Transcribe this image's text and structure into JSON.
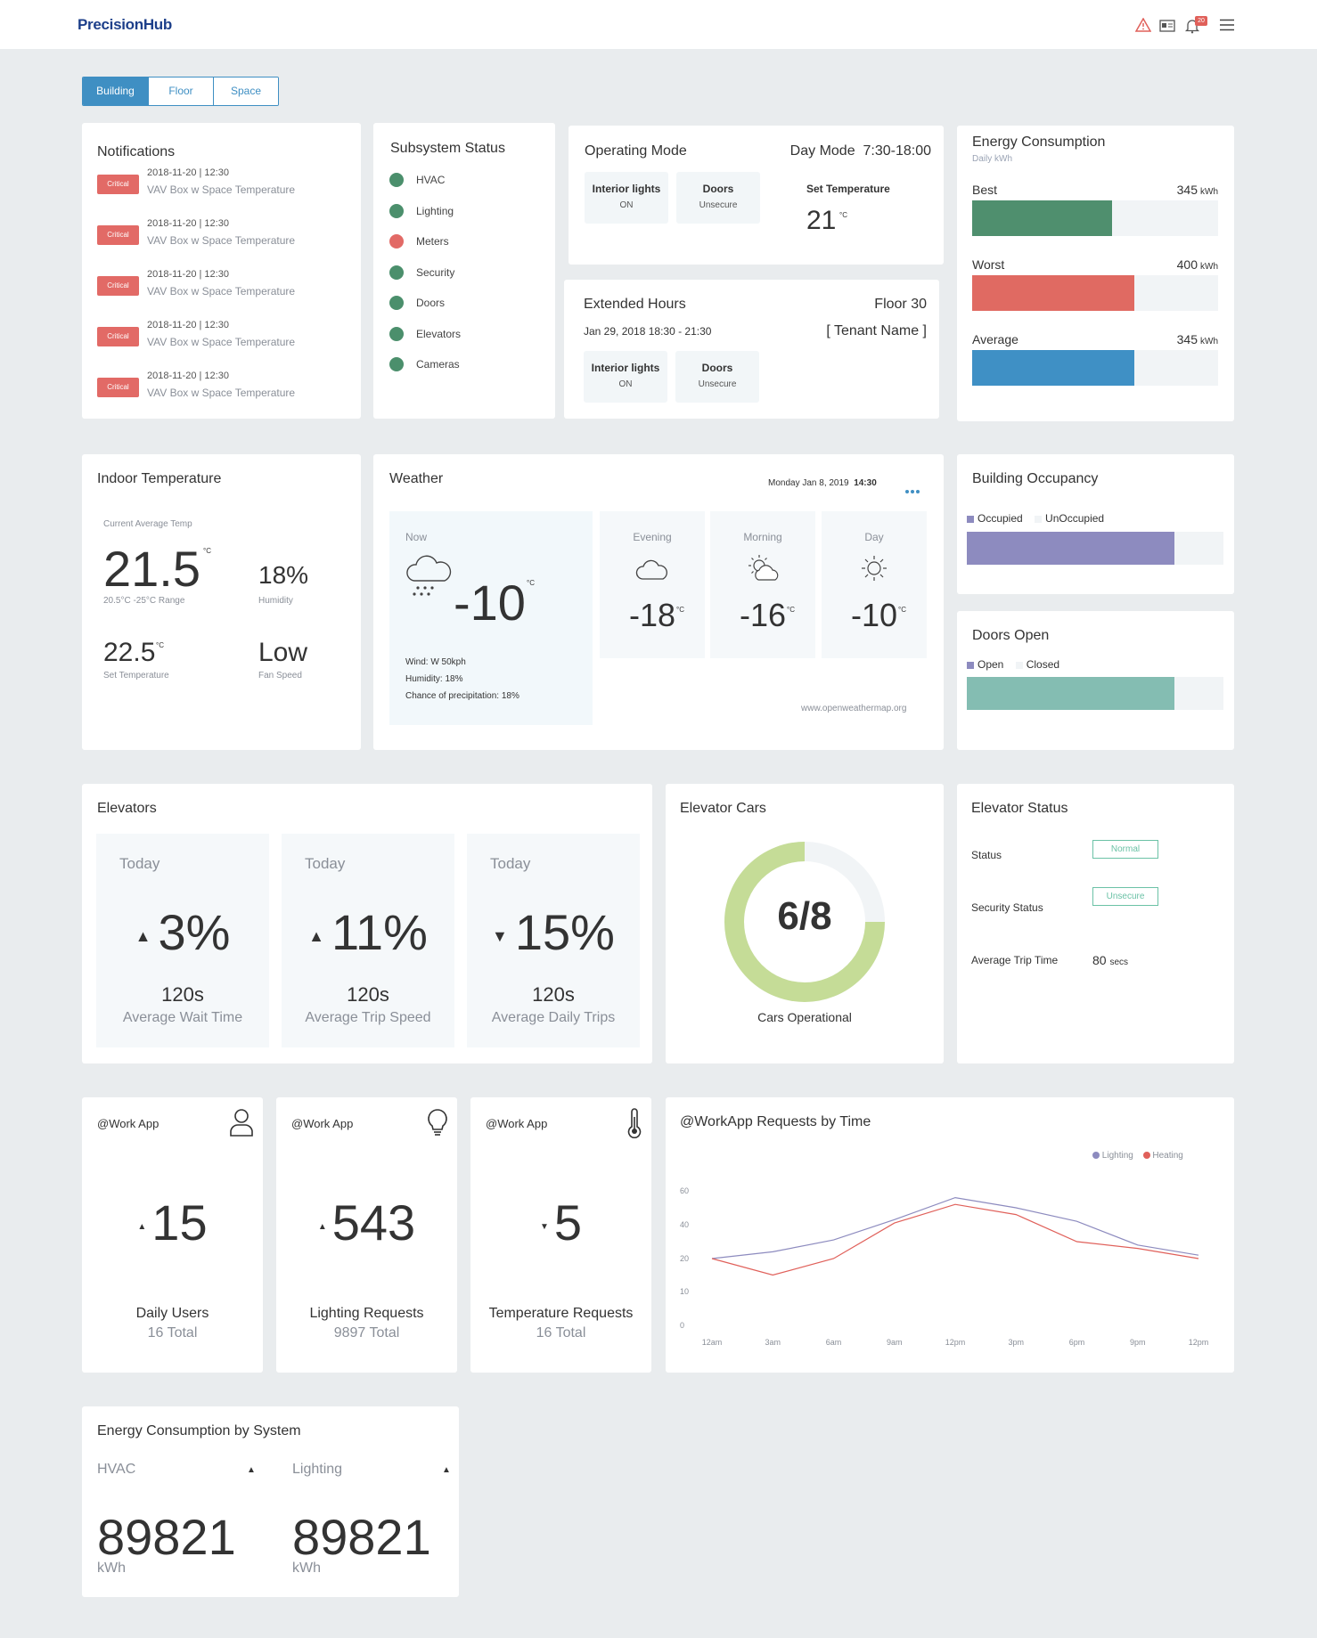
{
  "header": {
    "logo": "PrecisionHub",
    "notif_count": "20"
  },
  "tabs": [
    "Building",
    "Floor",
    "Space"
  ],
  "notifications": {
    "title": "Notifications",
    "items": [
      {
        "badge": "Critical",
        "date": "2018-11-20 |  12:30",
        "text": "VAV Box w Space Temperature"
      },
      {
        "badge": "Critical",
        "date": "2018-11-20 |  12:30",
        "text": "VAV Box w Space Temperature"
      },
      {
        "badge": "Critical",
        "date": "2018-11-20 |  12:30",
        "text": "VAV Box w Space Temperature"
      },
      {
        "badge": "Critical",
        "date": "2018-11-20 |  12:30",
        "text": "VAV Box w Space Temperature"
      },
      {
        "badge": "Critical",
        "date": "2018-11-20 |  12:30",
        "text": "VAV Box w Space Temperature"
      }
    ]
  },
  "subsystem": {
    "title": "Subsystem Status",
    "items": [
      {
        "label": "HVAC",
        "color": "#4b8f6c"
      },
      {
        "label": "Lighting",
        "color": "#4b8f6c"
      },
      {
        "label": "Meters",
        "color": "#e26a66"
      },
      {
        "label": "Security",
        "color": "#4b8f6c"
      },
      {
        "label": "Doors",
        "color": "#4b8f6c"
      },
      {
        "label": "Elevators",
        "color": "#4b8f6c"
      },
      {
        "label": "Cameras",
        "color": "#4b8f6c"
      }
    ]
  },
  "operating": {
    "title": "Operating Mode",
    "mode": "Day Mode",
    "hours": "7:30-18:00",
    "lights_label": "Interior lights",
    "lights_value": "ON",
    "doors_label": "Doors",
    "doors_value": "Unsecure",
    "set_temp_label": "Set Temperature",
    "set_temp_value": "21",
    "unit": "°C"
  },
  "extended": {
    "title": "Extended Hours",
    "floor": "Floor 30",
    "date": "Jan 29, 2018  18:30 - 21:30",
    "tenant": "[ Tenant Name ]",
    "lights_label": "Interior lights",
    "lights_value": "ON",
    "doors_label": "Doors",
    "doors_value": "Unsecure"
  },
  "energy": {
    "title": "Energy Consumption",
    "subtitle": "Daily kWh",
    "unit": "kWh",
    "rows": [
      {
        "label": "Best",
        "value": "345",
        "fill": 0.57,
        "color": "#4f8f6e"
      },
      {
        "label": "Worst",
        "value": "400",
        "fill": 0.66,
        "color": "#e06a62"
      },
      {
        "label": "Average",
        "value": "345",
        "fill": 0.66,
        "color": "#3f90c5"
      }
    ]
  },
  "indoor": {
    "title": "Indoor Temperature",
    "current_label": "Current Average Temp",
    "current": "21.5",
    "unit": "°C",
    "range": "20.5°C -25°C Range",
    "humidity": "18%",
    "humidity_label": "Humidity",
    "set": "22.5",
    "set_label": "Set Temperature",
    "fan": "Low",
    "fan_label": "Fan Speed"
  },
  "weather": {
    "title": "Weather",
    "date": "Monday Jan 8, 2019",
    "time": "14:30",
    "now_label": "Now",
    "now_temp": "-10",
    "unit": "°C",
    "wind": "Wind: W 50kph",
    "humidity": "Humidity:  18%",
    "precip": "Chance of precipitation:  18%",
    "source": "www.openweathermap.org",
    "forecast": [
      {
        "label": "Evening",
        "temp": "-18",
        "icon": "cloud-icon"
      },
      {
        "label": "Morning",
        "temp": "-16",
        "icon": "partly-sunny-icon"
      },
      {
        "label": "Day",
        "temp": "-10",
        "icon": "sun-icon"
      }
    ]
  },
  "occupancy": {
    "title": "Building Occupancy",
    "legend": [
      "Occupied",
      "UnOccupied"
    ],
    "fill": 0.81,
    "color": "#8d8bbf"
  },
  "doors": {
    "title": "Doors Open",
    "legend": [
      "Open",
      "Closed"
    ],
    "fill": 0.81,
    "color": "#84bdb2"
  },
  "elevators": {
    "title": "Elevators",
    "items": [
      {
        "today": "Today",
        "dir": "up",
        "pct": "3%",
        "value": "120s",
        "caption": "Average Wait Time"
      },
      {
        "today": "Today",
        "dir": "up",
        "pct": "11%",
        "value": "120s",
        "caption": "Average Trip Speed"
      },
      {
        "today": "Today",
        "dir": "down",
        "pct": "15%",
        "value": "120s",
        "caption": "Average Daily Trips"
      }
    ]
  },
  "elevator_cars": {
    "title": "Elevator Cars",
    "value": "6/8",
    "operational": 6,
    "total": 8,
    "caption": "Cars Operational",
    "color": "#c5dc97"
  },
  "elevator_status": {
    "title": "Elevator Status",
    "status_label": "Status",
    "status_value": "Normal",
    "security_label": "Security Status",
    "security_value": "Unsecure",
    "trip_label": "Average Trip Time",
    "trip_value": "80",
    "trip_unit": "secs"
  },
  "workapp": [
    {
      "title": "@Work App",
      "icon": "user-icon",
      "dir": "up",
      "value": "15",
      "caption": "Daily Users",
      "sub": "16 Total"
    },
    {
      "title": "@Work App",
      "icon": "lightbulb-icon",
      "dir": "up",
      "value": "543",
      "caption": "Lighting Requests",
      "sub": "9897 Total"
    },
    {
      "title": "@Work App",
      "icon": "thermometer-icon",
      "dir": "down",
      "value": "5",
      "caption": "Temperature Requests",
      "sub": "16 Total"
    }
  ],
  "chart_data": {
    "type": "line",
    "title": "@WorkApp Requests by Time",
    "categories": [
      "12am",
      "3am",
      "6am",
      "9am",
      "12pm",
      "3pm",
      "6pm",
      "9pm",
      "12pm"
    ],
    "y_ticks": [
      0,
      10,
      20,
      40,
      60
    ],
    "series": [
      {
        "name": "Lighting",
        "color": "#8d8bbf",
        "values": [
          20,
          24,
          31,
          43,
          56,
          50,
          42,
          28,
          22
        ]
      },
      {
        "name": "Heating",
        "color": "#e0605a",
        "values": [
          20,
          15,
          20,
          41,
          52,
          46,
          30,
          26,
          20
        ]
      }
    ],
    "legend_position": "top-right",
    "grid": false
  },
  "energy_system": {
    "title": "Energy Consumption by System",
    "items": [
      {
        "label": "HVAC",
        "value": "89821",
        "unit": "kWh"
      },
      {
        "label": "Lighting",
        "value": "89821",
        "unit": "kWh"
      }
    ]
  }
}
